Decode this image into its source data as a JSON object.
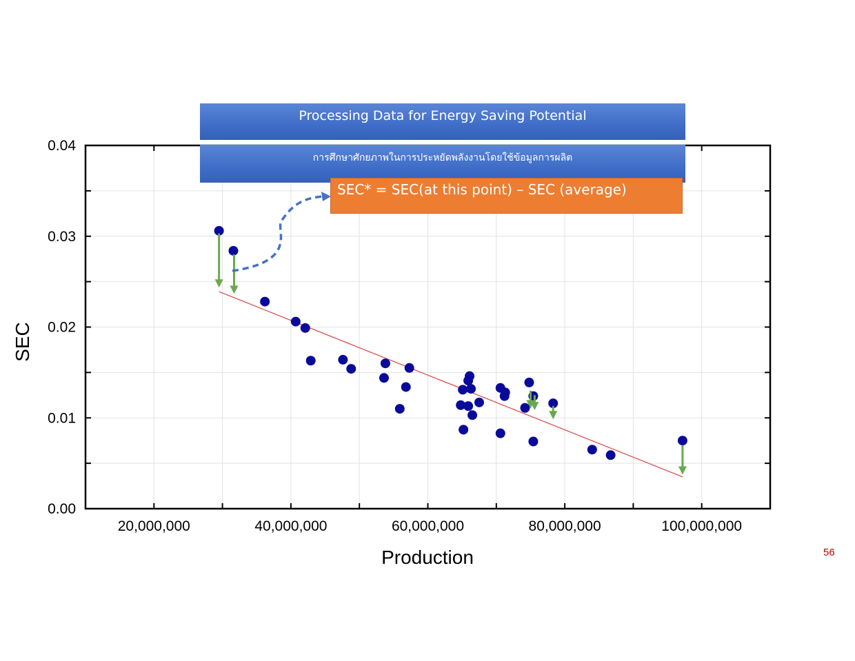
{
  "banner": {
    "title_en": "Processing Data for Energy Saving Potential",
    "title_th": "การศึกษาศักยภาพในการประหยัดพลังงานโดยใช้ข้อมูลการผลิต"
  },
  "formula": "SEC* = SEC(at this point) – SEC (average)",
  "page_number": "56",
  "colors": {
    "point": "#0a0a9a",
    "trend_line": "#e05050",
    "deviation_arrow": "#6aa84f",
    "annotation_arrow": "#4472c4",
    "banner": "#3f6dc7",
    "formula_box": "#ed7d31"
  },
  "chart_data": {
    "type": "scatter",
    "xlabel": "Production",
    "ylabel": "SEC",
    "xlim": [
      10000000,
      110000000
    ],
    "ylim": [
      0,
      0.04
    ],
    "xticks": [
      20000000,
      40000000,
      60000000,
      80000000,
      100000000
    ],
    "xtick_labels": [
      "20,000,000",
      "40,000,000",
      "60,000,000",
      "80,000,000",
      "100,000,000"
    ],
    "yticks": [
      0,
      0.01,
      0.02,
      0.03,
      0.04
    ],
    "ytick_labels": [
      "0.00",
      "0.01",
      "0.02",
      "0.03",
      "0.04"
    ],
    "grid": true,
    "series": [
      {
        "points": [
          [
            29500000,
            0.0306
          ],
          [
            31600000,
            0.0284
          ],
          [
            36200000,
            0.0228
          ],
          [
            40700000,
            0.0206
          ],
          [
            42100000,
            0.0199
          ],
          [
            42900000,
            0.0163
          ],
          [
            47600000,
            0.0164
          ],
          [
            48800000,
            0.0154
          ],
          [
            53800000,
            0.016
          ],
          [
            53600000,
            0.0144
          ],
          [
            57300000,
            0.0155
          ],
          [
            56800000,
            0.0134
          ],
          [
            55900000,
            0.011
          ],
          [
            65100000,
            0.0131
          ],
          [
            66100000,
            0.0146
          ],
          [
            65900000,
            0.0141
          ],
          [
            66300000,
            0.0132
          ],
          [
            64800000,
            0.0114
          ],
          [
            65900000,
            0.0113
          ],
          [
            67500000,
            0.0117
          ],
          [
            66500000,
            0.0103
          ],
          [
            65200000,
            0.0087
          ],
          [
            70600000,
            0.0133
          ],
          [
            71300000,
            0.0128
          ],
          [
            71200000,
            0.0124
          ],
          [
            74800000,
            0.0139
          ],
          [
            75400000,
            0.0124
          ],
          [
            74200000,
            0.0111
          ],
          [
            78300000,
            0.0116
          ],
          [
            70600000,
            0.0083
          ],
          [
            75400000,
            0.0074
          ],
          [
            84000000,
            0.0065
          ],
          [
            86700000,
            0.0059
          ],
          [
            97200000,
            0.0075
          ]
        ]
      }
    ],
    "trend_line": {
      "x": [
        29500000,
        97200000
      ],
      "y": [
        0.0239,
        0.0035
      ]
    },
    "deviation_arrows": [
      {
        "x": 29500000,
        "from": 0.0303,
        "to": 0.0245
      },
      {
        "x": 31700000,
        "from": 0.028,
        "to": 0.0238
      },
      {
        "x": 75000000,
        "from": 0.013,
        "to": 0.0112
      },
      {
        "x": 75600000,
        "from": 0.0125,
        "to": 0.011
      },
      {
        "x": 78300000,
        "from": 0.0113,
        "to": 0.01
      },
      {
        "x": 97200000,
        "from": 0.007,
        "to": 0.0039
      }
    ]
  }
}
